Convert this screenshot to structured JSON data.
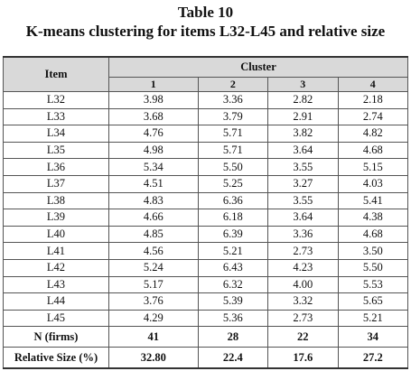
{
  "title": "Table 10",
  "subtitle": "K-means clustering for items L32-L45 and relative size",
  "table": {
    "item_header": "Item",
    "cluster_header": "Cluster",
    "columns": [
      "1",
      "2",
      "3",
      "4"
    ],
    "rows": [
      [
        "L32",
        "3.98",
        "3.36",
        "2.82",
        "2.18"
      ],
      [
        "L33",
        "3.68",
        "3.79",
        "2.91",
        "2.74"
      ],
      [
        "L34",
        "4.76",
        "5.71",
        "3.82",
        "4.82"
      ],
      [
        "L35",
        "4.98",
        "5.71",
        "3.64",
        "4.68"
      ],
      [
        "L36",
        "5.34",
        "5.50",
        "3.55",
        "5.15"
      ],
      [
        "L37",
        "4.51",
        "5.25",
        "3.27",
        "4.03"
      ],
      [
        "L38",
        "4.83",
        "6.36",
        "3.55",
        "5.41"
      ],
      [
        "L39",
        "4.66",
        "6.18",
        "3.64",
        "4.38"
      ],
      [
        "L40",
        "4.85",
        "6.39",
        "3.36",
        "4.68"
      ],
      [
        "L41",
        "4.56",
        "5.21",
        "2.73",
        "3.50"
      ],
      [
        "L42",
        "5.24",
        "6.43",
        "4.23",
        "5.50"
      ],
      [
        "L43",
        "5.17",
        "6.32",
        "4.00",
        "5.53"
      ],
      [
        "L44",
        "3.76",
        "5.39",
        "3.32",
        "5.65"
      ],
      [
        "L45",
        "4.29",
        "5.36",
        "2.73",
        "5.21"
      ]
    ],
    "footer_rows": [
      [
        "N (firms)",
        "41",
        "28",
        "22",
        "34"
      ],
      [
        "Relative Size (%)",
        "32.80",
        "22.4",
        "17.6",
        "27.2"
      ]
    ]
  }
}
